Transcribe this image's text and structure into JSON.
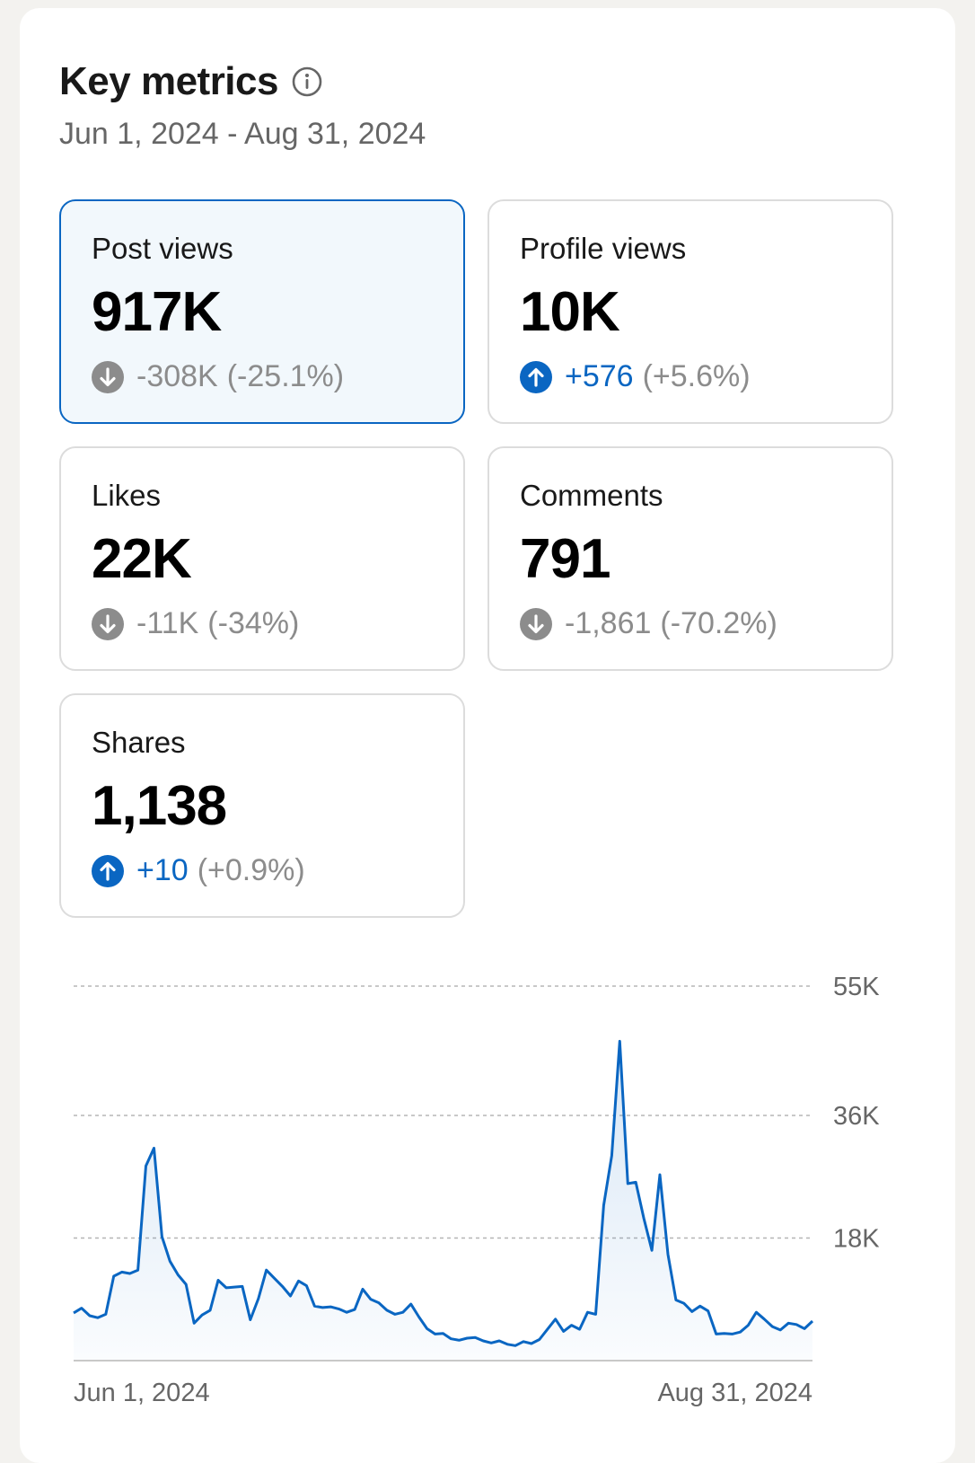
{
  "header": {
    "title": "Key metrics",
    "date_range": "Jun 1, 2024 - Aug 31, 2024"
  },
  "metrics": [
    {
      "label": "Post views",
      "value": "917K",
      "delta": "-308K",
      "pct": "(-25.1%)",
      "direction": "down",
      "selected": true
    },
    {
      "label": "Profile views",
      "value": "10K",
      "delta": "+576",
      "pct": "(+5.6%)",
      "direction": "up",
      "selected": false
    },
    {
      "label": "Likes",
      "value": "22K",
      "delta": "-11K",
      "pct": "(-34%)",
      "direction": "down",
      "selected": false
    },
    {
      "label": "Comments",
      "value": "791",
      "delta": "-1,861",
      "pct": "(-70.2%)",
      "direction": "down",
      "selected": false
    },
    {
      "label": "Shares",
      "value": "1,138",
      "delta": "+10",
      "pct": "(+0.9%)",
      "direction": "up",
      "selected": false
    }
  ],
  "colors": {
    "accent": "#0a66c2",
    "muted": "#8c8c8c",
    "selected_bg": "#f2f8fc"
  },
  "chart_data": {
    "type": "area",
    "title": "Post views",
    "xlabel": "",
    "ylabel": "",
    "x_tick_labels": [
      "Jun 1, 2024",
      "Aug 31, 2024"
    ],
    "y_tick_values": [
      18000,
      36000,
      55000
    ],
    "y_tick_labels": [
      "18K",
      "36K",
      "55K"
    ],
    "ylim": [
      0,
      55000
    ],
    "grid": true,
    "series": [
      {
        "name": "Post views",
        "values": [
          7000,
          7700,
          6600,
          6300,
          6800,
          12400,
          13000,
          12800,
          13300,
          28600,
          31200,
          18200,
          14600,
          12600,
          11200,
          5500,
          6700,
          7400,
          11800,
          10700,
          10800,
          10900,
          6000,
          9100,
          13300,
          12100,
          10900,
          9500,
          11700,
          11000,
          8000,
          7800,
          7900,
          7600,
          7100,
          7500,
          10500,
          9000,
          8500,
          7400,
          6800,
          7100,
          8300,
          6400,
          4700,
          3900,
          4000,
          3200,
          3000,
          3300,
          3400,
          2900,
          2600,
          2900,
          2400,
          2200,
          2800,
          2500,
          3100,
          4600,
          6100,
          4300,
          5200,
          4600,
          7100,
          6800,
          22800,
          30100,
          46900,
          26000,
          26200,
          20900,
          16200,
          27300,
          15600,
          8900,
          8400,
          7200,
          8000,
          7300,
          3900,
          4000,
          3900,
          4200,
          5200,
          7100,
          6100,
          5000,
          4500,
          5500,
          5300,
          4700,
          5800
        ]
      }
    ]
  }
}
